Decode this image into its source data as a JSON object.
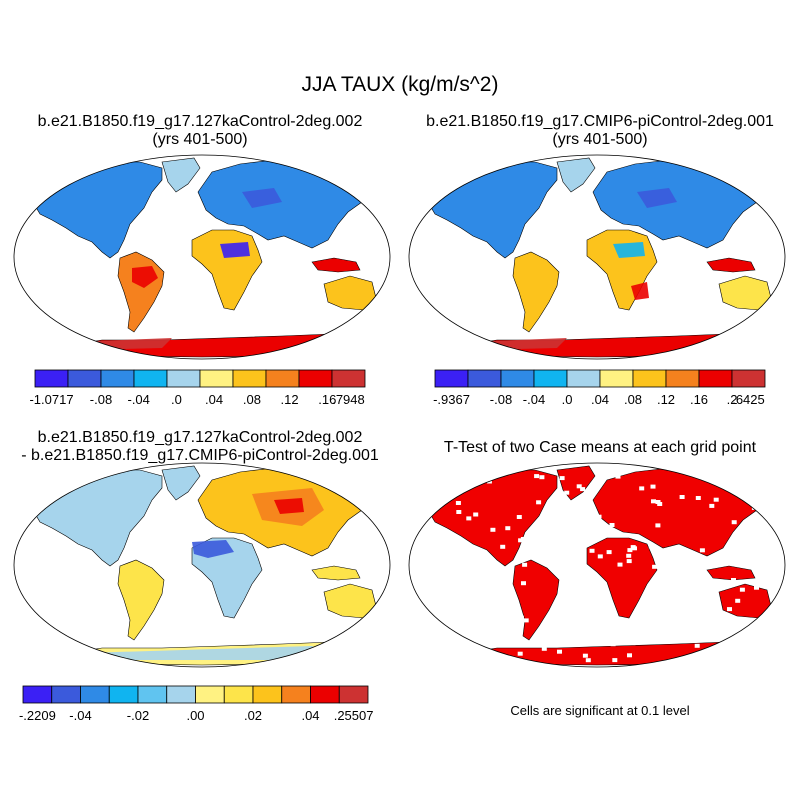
{
  "title": "JJA TAUX (kg/m/s^2)",
  "colors": {
    "land": "#a6d4ec",
    "significance": "#f00000",
    "outline": "#000000",
    "ocean": "#ffffff"
  },
  "panels": [
    {
      "id": "p1",
      "title_line1": "b.e21.B1850.f19_g17.127kaControl-2deg.002",
      "title_line2": "(yrs 401-500)",
      "colorbar": {
        "colors": [
          "#3b20f5",
          "#3b5adc",
          "#2f8ae6",
          "#10b4f0",
          "#a6d4ec",
          "#fff282",
          "#fcc31c",
          "#f5811e",
          "#eb0000",
          "#cd3232"
        ],
        "labels": [
          "-1.0717",
          "-.08",
          "-.04",
          ".0",
          ".04",
          ".08",
          ".12",
          ".16",
          ".7948"
        ]
      }
    },
    {
      "id": "p2",
      "title_line1": "b.e21.B1850.f19_g17.CMIP6-piControl-2deg.001",
      "title_line2": "(yrs 401-500)",
      "colorbar": {
        "colors": [
          "#3b20f5",
          "#3b5adc",
          "#2f8ae6",
          "#10b4f0",
          "#a6d4ec",
          "#fff282",
          "#fcc31c",
          "#f5811e",
          "#eb0000",
          "#cd3232"
        ],
        "labels": [
          "-.9367",
          "-.08",
          "-.04",
          ".0",
          ".04",
          ".08",
          ".12",
          ".16",
          ".2",
          ".6425"
        ]
      }
    },
    {
      "id": "p3",
      "title_line1": "b.e21.B1850.f19_g17.127kaControl-2deg.002",
      "title_line2": "- b.e21.B1850.f19_g17.CMIP6-piControl-2deg.001",
      "colorbar": {
        "colors": [
          "#3b20f5",
          "#3b5adc",
          "#2f8ae6",
          "#10b4f0",
          "#60c4f0",
          "#a6d4ec",
          "#fff282",
          "#fde44a",
          "#fcc31c",
          "#f5811e",
          "#eb0000",
          "#cd3232"
        ],
        "labels": [
          "-.2209",
          "-.04",
          "-.02",
          ".00",
          ".02",
          ".04",
          ".25507"
        ]
      }
    },
    {
      "id": "p4",
      "title_line1": "T-Test of two Case means at each grid point",
      "note": "Cells are significant at 0.1 level"
    }
  ]
}
